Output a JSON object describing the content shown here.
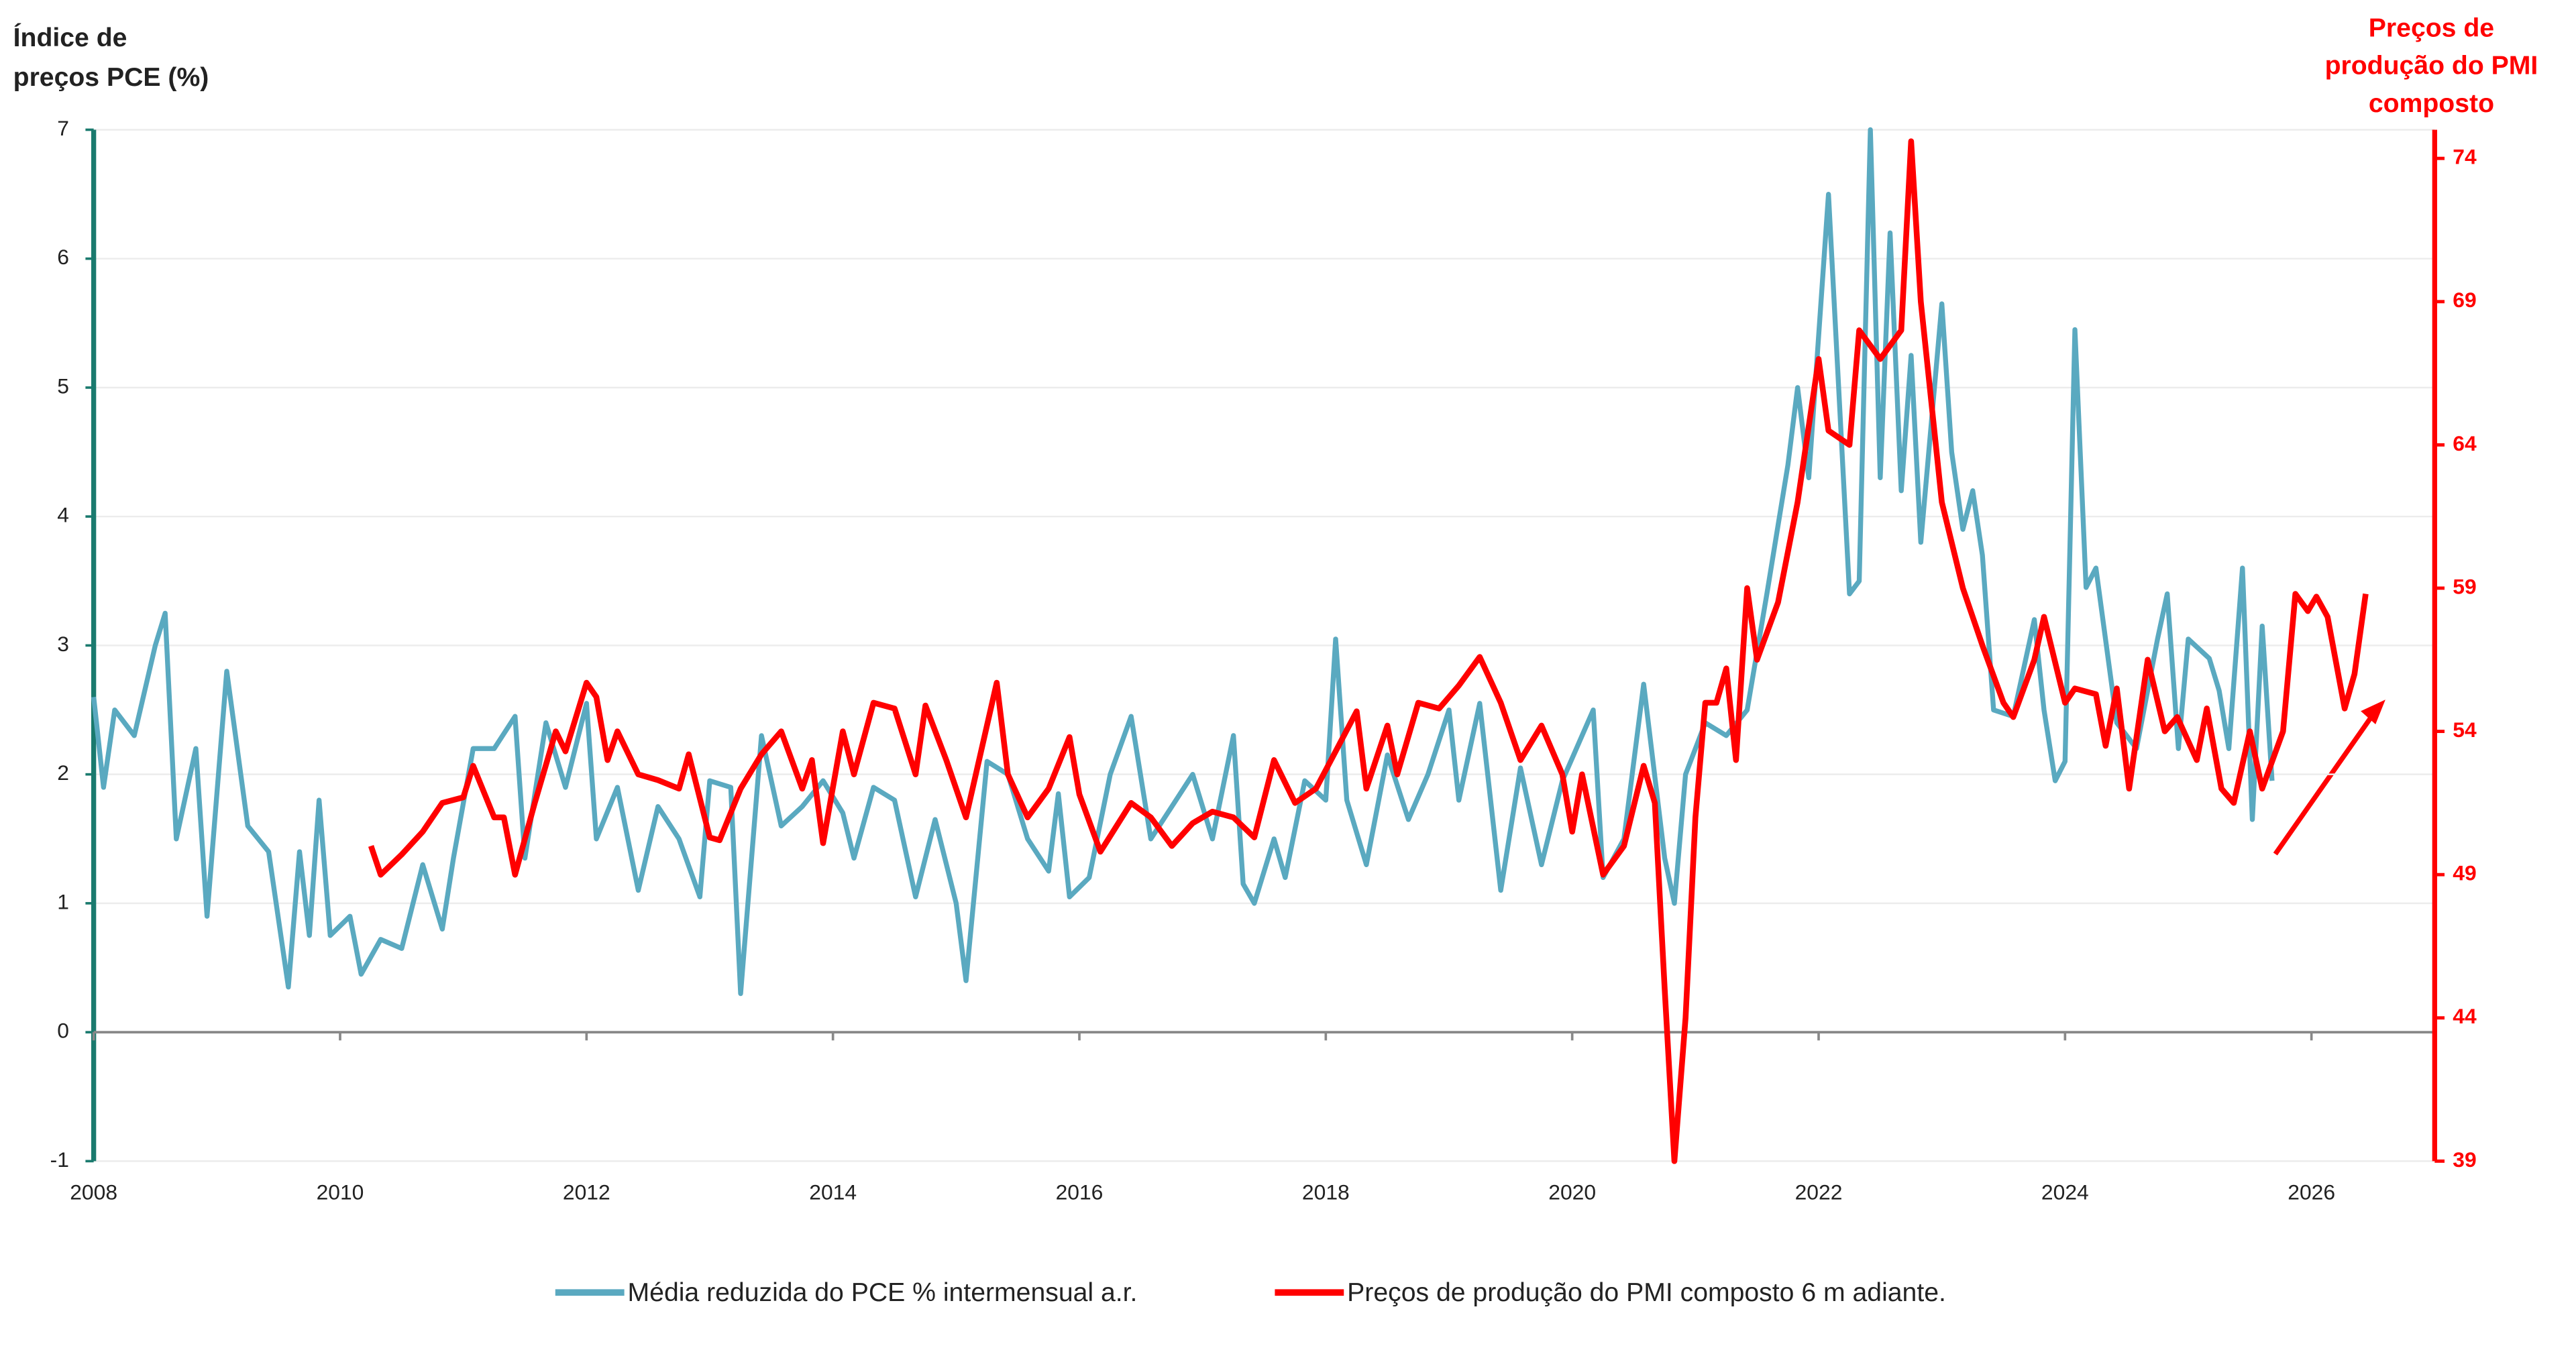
{
  "chart_data": {
    "type": "line",
    "ylabel": [
      "Índice de",
      "preços PCE (%)"
    ],
    "y2label": [
      "Preços de",
      "produção do PMI",
      "composto"
    ],
    "xlim": [
      2008,
      2027
    ],
    "xticks": [
      2008,
      2010,
      2012,
      2014,
      2016,
      2018,
      2020,
      2022,
      2024,
      2026
    ],
    "ylim": [
      -1,
      7
    ],
    "yticks": [
      -1,
      0,
      1,
      2,
      3,
      4,
      5,
      6,
      7
    ],
    "y2lim": [
      39,
      75
    ],
    "y2ticks": [
      39,
      44,
      49,
      54,
      59,
      64,
      69,
      74
    ],
    "grid": true,
    "legend": "bottom",
    "series": [
      {
        "name": "Média reduzida do PCE % intermensual a.r.",
        "color": "#5aa9c0",
        "x": [
          2008.0,
          2008.08,
          2008.17,
          2008.33,
          2008.5,
          2008.58,
          2008.67,
          2008.83,
          2008.92,
          2009.08,
          2009.25,
          2009.42,
          2009.58,
          2009.67,
          2009.75,
          2009.83,
          2009.92,
          2010.08,
          2010.17,
          2010.33,
          2010.5,
          2010.67,
          2010.83,
          2010.92,
          2011.08,
          2011.25,
          2011.42,
          2011.5,
          2011.67,
          2011.83,
          2012.0,
          2012.08,
          2012.25,
          2012.42,
          2012.58,
          2012.75,
          2012.92,
          2013.0,
          2013.17,
          2013.25,
          2013.42,
          2013.58,
          2013.75,
          2013.92,
          2014.08,
          2014.17,
          2014.33,
          2014.5,
          2014.67,
          2014.83,
          2015.0,
          2015.08,
          2015.25,
          2015.42,
          2015.58,
          2015.75,
          2015.83,
          2015.92,
          2016.08,
          2016.25,
          2016.42,
          2016.58,
          2016.75,
          2016.92,
          2017.08,
          2017.25,
          2017.33,
          2017.42,
          2017.58,
          2017.67,
          2017.83,
          2018.0,
          2018.08,
          2018.17,
          2018.33,
          2018.5,
          2018.67,
          2018.83,
          2019.0,
          2019.08,
          2019.25,
          2019.42,
          2019.58,
          2019.75,
          2019.92,
          2020.08,
          2020.17,
          2020.25,
          2020.42,
          2020.58,
          2020.75,
          2020.83,
          2020.92,
          2021.08,
          2021.25,
          2021.42,
          2021.58,
          2021.75,
          2021.83,
          2021.92,
          2022.08,
          2022.25,
          2022.33,
          2022.42,
          2022.5,
          2022.58,
          2022.67,
          2022.75,
          2022.83,
          2023.0,
          2023.08,
          2023.17,
          2023.25,
          2023.33,
          2023.42,
          2023.58,
          2023.75,
          2023.83,
          2023.92,
          2024.0,
          2024.08,
          2024.17,
          2024.25,
          2024.42,
          2024.5,
          2024.58,
          2024.75,
          2024.83,
          2024.92,
          2025.0,
          2025.17,
          2025.25,
          2025.33,
          2025.44,
          2025.52,
          2025.6,
          2025.68
        ],
        "values": [
          2.6,
          1.9,
          2.5,
          2.3,
          3.0,
          3.25,
          1.5,
          2.2,
          0.9,
          2.8,
          1.6,
          1.4,
          0.35,
          1.4,
          0.75,
          1.8,
          0.75,
          0.9,
          0.45,
          0.72,
          0.65,
          1.3,
          0.8,
          1.35,
          2.2,
          2.2,
          2.45,
          1.35,
          2.4,
          1.9,
          2.55,
          1.5,
          1.9,
          1.1,
          1.75,
          1.5,
          1.05,
          1.95,
          1.9,
          0.3,
          2.3,
          1.6,
          1.75,
          1.95,
          1.7,
          1.35,
          1.9,
          1.8,
          1.05,
          1.65,
          1.0,
          0.4,
          2.1,
          2.0,
          1.5,
          1.25,
          1.85,
          1.05,
          1.2,
          2.0,
          2.45,
          1.5,
          1.75,
          2.0,
          1.5,
          2.3,
          1.15,
          1.0,
          1.5,
          1.2,
          1.95,
          1.8,
          3.05,
          1.8,
          1.3,
          2.15,
          1.65,
          2.0,
          2.5,
          1.8,
          2.55,
          1.1,
          2.05,
          1.3,
          1.95,
          2.3,
          2.5,
          1.2,
          1.5,
          2.7,
          1.35,
          1.0,
          2.0,
          2.4,
          2.3,
          2.5,
          3.4,
          4.4,
          5.0,
          4.3,
          6.5,
          3.4,
          3.5,
          7.0,
          4.3,
          6.2,
          4.2,
          5.25,
          3.8,
          5.65,
          4.5,
          3.9,
          4.2,
          3.7,
          2.5,
          2.45,
          3.2,
          2.5,
          1.95,
          2.1,
          5.45,
          3.45,
          3.6,
          2.4,
          2.3,
          2.2,
          3.05,
          3.4,
          2.2,
          3.05,
          2.9,
          2.65,
          2.2,
          3.6,
          1.65,
          3.15,
          1.95
        ]
      },
      {
        "name": "Preços de produção do PMI composto 6 m adiante.",
        "color": "#ff0000",
        "axis": "y2",
        "x": [
          2010.25,
          2010.33,
          2010.5,
          2010.67,
          2010.83,
          2011.0,
          2011.08,
          2011.25,
          2011.33,
          2011.42,
          2011.58,
          2011.75,
          2011.83,
          2012.0,
          2012.08,
          2012.17,
          2012.25,
          2012.42,
          2012.58,
          2012.75,
          2012.83,
          2013.0,
          2013.08,
          2013.25,
          2013.42,
          2013.58,
          2013.75,
          2013.83,
          2013.92,
          2014.08,
          2014.17,
          2014.33,
          2014.5,
          2014.67,
          2014.75,
          2014.92,
          2015.08,
          2015.33,
          2015.42,
          2015.58,
          2015.75,
          2015.92,
          2016.0,
          2016.17,
          2016.42,
          2016.58,
          2016.75,
          2016.92,
          2017.08,
          2017.25,
          2017.42,
          2017.58,
          2017.75,
          2017.92,
          2018.08,
          2018.25,
          2018.33,
          2018.5,
          2018.58,
          2018.75,
          2018.92,
          2019.08,
          2019.25,
          2019.42,
          2019.58,
          2019.75,
          2019.92,
          2020.0,
          2020.08,
          2020.25,
          2020.42,
          2020.58,
          2020.67,
          2020.75,
          2020.83,
          2020.92,
          2021.0,
          2021.08,
          2021.17,
          2021.25,
          2021.33,
          2021.42,
          2021.5,
          2021.67,
          2021.83,
          2022.0,
          2022.08,
          2022.25,
          2022.33,
          2022.5,
          2022.67,
          2022.75,
          2022.83,
          2023.0,
          2023.17,
          2023.33,
          2023.5,
          2023.58,
          2023.75,
          2023.83,
          2024.0,
          2024.08,
          2024.25,
          2024.33,
          2024.42,
          2024.52,
          2024.67,
          2024.81,
          2024.91,
          2025.07,
          2025.15,
          2025.27,
          2025.37,
          2025.5,
          2025.6,
          2025.77,
          2025.87,
          2025.97,
          2026.04,
          2026.13,
          2026.27,
          2026.35,
          2026.44
        ],
        "values": [
          50.0,
          49.0,
          49.7,
          50.5,
          51.5,
          51.7,
          52.8,
          51.0,
          51.0,
          49.0,
          51.5,
          54.0,
          53.3,
          55.7,
          55.2,
          53.0,
          54.0,
          52.5,
          52.3,
          52.0,
          53.2,
          50.3,
          50.2,
          52.0,
          53.2,
          54.0,
          52.0,
          53.0,
          50.1,
          54.0,
          52.5,
          55.0,
          54.8,
          52.5,
          54.9,
          53.0,
          51.0,
          55.7,
          52.5,
          51.0,
          52.0,
          53.8,
          51.8,
          49.8,
          51.5,
          51.0,
          50.0,
          50.8,
          51.2,
          51.0,
          50.3,
          53.0,
          51.5,
          52.0,
          53.3,
          54.7,
          52.0,
          54.2,
          52.5,
          55.0,
          54.8,
          55.6,
          56.6,
          55.0,
          53.0,
          54.2,
          52.5,
          50.5,
          52.5,
          49.0,
          50.0,
          52.8,
          51.5,
          45.0,
          39.0,
          44.0,
          51.0,
          55.0,
          55.0,
          56.2,
          53.0,
          59.0,
          56.5,
          58.5,
          62.0,
          67.0,
          64.5,
          64.0,
          68.0,
          67.0,
          68.0,
          74.6,
          69.0,
          62.0,
          59.0,
          57.0,
          55.0,
          54.5,
          56.5,
          58.0,
          55.0,
          55.5,
          55.3,
          53.5,
          55.5,
          52.0,
          56.5,
          54.0,
          54.5,
          53.0,
          54.8,
          52.0,
          51.5,
          54.0,
          52.0,
          54.0,
          58.8,
          58.2,
          58.7,
          58.0,
          54.8,
          56.0,
          58.8
        ]
      }
    ]
  }
}
